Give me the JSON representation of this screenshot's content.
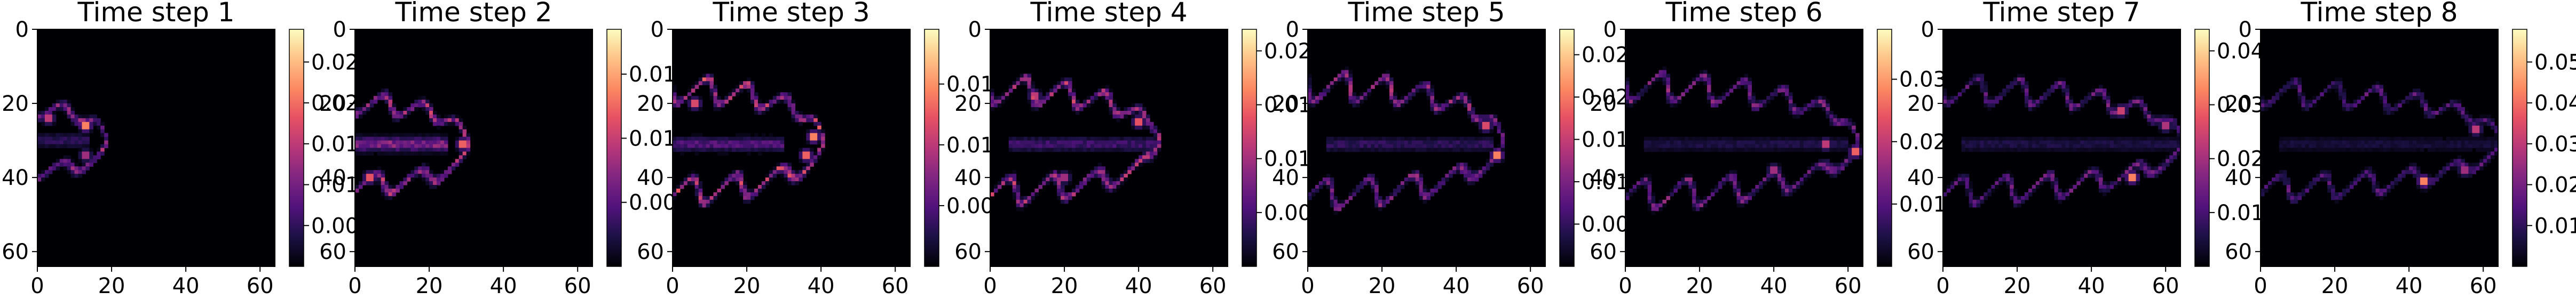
{
  "chart_data": [
    {
      "type": "heatmap",
      "title": "Time step 1",
      "x_ticks": [
        0,
        20,
        40,
        60
      ],
      "y_ticks": [
        0,
        20,
        40,
        60
      ],
      "xlim": [
        0,
        64
      ],
      "ylim": [
        64,
        0
      ],
      "colormap": "magma",
      "colorbar_range": [
        0.0,
        0.029
      ],
      "colorbar_ticks": [
        0.005,
        0.01,
        0.015,
        0.02,
        0.025
      ],
      "colorbar_tick_labels": [
        "0.005",
        "0.010",
        "0.015",
        "0.020",
        "0.025"
      ],
      "features": [
        {
          "shape": "ring",
          "x_start": 0,
          "x_end": 18,
          "y_center": 30,
          "half_height": 8,
          "intensity": 0.45
        },
        {
          "shape": "hotspot",
          "x": 13,
          "y": 26,
          "intensity": 1.0
        },
        {
          "shape": "hotspot",
          "x": 3,
          "y": 24,
          "intensity": 0.7
        },
        {
          "shape": "hotspot",
          "x": 13,
          "y": 34,
          "intensity": 0.6
        },
        {
          "shape": "core",
          "x_start": 0,
          "x_end": 14,
          "y_center": 30,
          "intensity": 0.2
        }
      ]
    },
    {
      "type": "heatmap",
      "title": "Time step 2",
      "x_ticks": [
        0,
        20,
        40,
        60
      ],
      "y_ticks": [
        0,
        20,
        40,
        60
      ],
      "xlim": [
        0,
        64
      ],
      "ylim": [
        64,
        0
      ],
      "colormap": "magma",
      "colorbar_range": [
        0.0,
        0.0185
      ],
      "colorbar_ticks": [
        0.005,
        0.01,
        0.015
      ],
      "colorbar_tick_labels": [
        "0.005",
        "0.010",
        "0.015"
      ],
      "features": [
        {
          "shape": "ring",
          "x_start": 0,
          "x_end": 30,
          "y_center": 31,
          "half_height": 11,
          "intensity": 0.55
        },
        {
          "shape": "hotspot",
          "x": 29,
          "y": 31,
          "intensity": 0.9
        },
        {
          "shape": "hotspot",
          "x": 4,
          "y": 40,
          "intensity": 0.85
        },
        {
          "shape": "core",
          "x_start": 0,
          "x_end": 25,
          "y_center": 31,
          "intensity": 0.45
        }
      ]
    },
    {
      "type": "heatmap",
      "title": "Time step 3",
      "x_ticks": [
        0,
        20,
        40,
        60
      ],
      "y_ticks": [
        0,
        20,
        40,
        60
      ],
      "xlim": [
        0,
        64
      ],
      "ylim": [
        64,
        0
      ],
      "colormap": "magma",
      "colorbar_range": [
        0.0,
        0.0195
      ],
      "colorbar_ticks": [
        0.005,
        0.01,
        0.015
      ],
      "colorbar_tick_labels": [
        "0.005",
        "0.010",
        "0.015"
      ],
      "features": [
        {
          "shape": "ring",
          "x_start": 0,
          "x_end": 40,
          "y_center": 30,
          "half_height": 14,
          "intensity": 0.6
        },
        {
          "shape": "hotspot",
          "x": 38,
          "y": 29,
          "intensity": 1.0
        },
        {
          "shape": "hotspot",
          "x": 36,
          "y": 34,
          "intensity": 0.9
        },
        {
          "shape": "hotspot",
          "x": 6,
          "y": 20,
          "intensity": 0.8
        },
        {
          "shape": "core",
          "x_start": 0,
          "x_end": 30,
          "y_center": 31,
          "intensity": 0.3
        }
      ]
    },
    {
      "type": "heatmap",
      "title": "Time step 4",
      "x_ticks": [
        0,
        20,
        40,
        60
      ],
      "y_ticks": [
        0,
        20,
        40,
        60
      ],
      "xlim": [
        0,
        64
      ],
      "ylim": [
        64,
        0
      ],
      "colormap": "magma",
      "colorbar_range": [
        0.0,
        0.022
      ],
      "colorbar_ticks": [
        0.005,
        0.01,
        0.015,
        0.02
      ],
      "colorbar_tick_labels": [
        "0.005",
        "0.010",
        "0.015",
        "0.020"
      ],
      "features": [
        {
          "shape": "ring",
          "x_start": 0,
          "x_end": 45,
          "y_center": 30,
          "half_height": 14,
          "intensity": 0.55
        },
        {
          "shape": "hotspot",
          "x": 40,
          "y": 25,
          "intensity": 0.85
        },
        {
          "shape": "hotspot",
          "x": 12,
          "y": 18,
          "intensity": 0.7
        },
        {
          "shape": "hotspot",
          "x": 20,
          "y": 40,
          "intensity": 0.6
        },
        {
          "shape": "core",
          "x_start": 5,
          "x_end": 45,
          "y_center": 31,
          "intensity": 0.25
        }
      ]
    },
    {
      "type": "heatmap",
      "title": "Time step 5",
      "x_ticks": [
        0,
        20,
        40,
        60
      ],
      "y_ticks": [
        0,
        20,
        40,
        60
      ],
      "xlim": [
        0,
        64
      ],
      "ylim": [
        64,
        0
      ],
      "colormap": "magma",
      "colorbar_range": [
        0.0,
        0.028
      ],
      "colorbar_ticks": [
        0.005,
        0.01,
        0.015,
        0.02,
        0.025
      ],
      "colorbar_tick_labels": [
        "0.005",
        "0.010",
        "0.015",
        "0.020",
        "0.025"
      ],
      "features": [
        {
          "shape": "ring",
          "x_start": 0,
          "x_end": 52,
          "y_center": 30,
          "half_height": 15,
          "intensity": 0.45
        },
        {
          "shape": "hotspot",
          "x": 51,
          "y": 34,
          "intensity": 1.0
        },
        {
          "shape": "hotspot",
          "x": 48,
          "y": 26,
          "intensity": 0.8
        },
        {
          "shape": "core",
          "x_start": 5,
          "x_end": 50,
          "y_center": 31,
          "intensity": 0.2
        }
      ]
    },
    {
      "type": "heatmap",
      "title": "Time step 6",
      "x_ticks": [
        0,
        20,
        40,
        60
      ],
      "y_ticks": [
        0,
        20,
        40,
        60
      ],
      "xlim": [
        0,
        64
      ],
      "ylim": [
        64,
        0
      ],
      "colormap": "magma",
      "colorbar_range": [
        0.0,
        0.038
      ],
      "colorbar_ticks": [
        0.01,
        0.02,
        0.03
      ],
      "colorbar_tick_labels": [
        "0.01",
        "0.02",
        "0.03"
      ],
      "features": [
        {
          "shape": "ring",
          "x_start": 0,
          "x_end": 62,
          "y_center": 30,
          "half_height": 15,
          "intensity": 0.4
        },
        {
          "shape": "hotspot",
          "x": 62,
          "y": 33,
          "intensity": 0.9
        },
        {
          "shape": "hotspot",
          "x": 54,
          "y": 31,
          "intensity": 0.7
        },
        {
          "shape": "hotspot",
          "x": 40,
          "y": 38,
          "intensity": 0.6
        },
        {
          "shape": "core",
          "x_start": 5,
          "x_end": 60,
          "y_center": 31,
          "intensity": 0.15
        }
      ]
    },
    {
      "type": "heatmap",
      "title": "Time step 7",
      "x_ticks": [
        0,
        20,
        40,
        60
      ],
      "y_ticks": [
        0,
        20,
        40,
        60
      ],
      "xlim": [
        0,
        64
      ],
      "ylim": [
        64,
        0
      ],
      "colormap": "magma",
      "colorbar_range": [
        0.0,
        0.044
      ],
      "colorbar_ticks": [
        0.01,
        0.02,
        0.03,
        0.04
      ],
      "colorbar_tick_labels": [
        "0.01",
        "0.02",
        "0.03",
        "0.04"
      ],
      "features": [
        {
          "shape": "ring",
          "x_start": 0,
          "x_end": 64,
          "y_center": 30,
          "half_height": 14,
          "intensity": 0.35
        },
        {
          "shape": "hotspot",
          "x": 51,
          "y": 40,
          "intensity": 1.0
        },
        {
          "shape": "hotspot",
          "x": 48,
          "y": 22,
          "intensity": 0.75
        },
        {
          "shape": "hotspot",
          "x": 60,
          "y": 26,
          "intensity": 0.65
        },
        {
          "shape": "core",
          "x_start": 5,
          "x_end": 64,
          "y_center": 31,
          "intensity": 0.15
        }
      ]
    },
    {
      "type": "heatmap",
      "title": "Time step 8",
      "x_ticks": [
        0,
        20,
        40,
        60
      ],
      "y_ticks": [
        0,
        20,
        40,
        60
      ],
      "xlim": [
        0,
        64
      ],
      "ylim": [
        64,
        0
      ],
      "colormap": "magma",
      "colorbar_range": [
        0.0,
        0.058
      ],
      "colorbar_ticks": [
        0.01,
        0.02,
        0.03,
        0.04,
        0.05
      ],
      "colorbar_tick_labels": [
        "0.01",
        "0.02",
        "0.03",
        "0.04",
        "0.05"
      ],
      "features": [
        {
          "shape": "ring",
          "x_start": 0,
          "x_end": 64,
          "y_center": 30,
          "half_height": 13,
          "intensity": 0.3
        },
        {
          "shape": "hotspot",
          "x": 44,
          "y": 41,
          "intensity": 1.0
        },
        {
          "shape": "hotspot",
          "x": 58,
          "y": 27,
          "intensity": 0.7
        },
        {
          "shape": "hotspot",
          "x": 55,
          "y": 38,
          "intensity": 0.6
        },
        {
          "shape": "core",
          "x_start": 5,
          "x_end": 64,
          "y_center": 31,
          "intensity": 0.12
        }
      ]
    }
  ]
}
